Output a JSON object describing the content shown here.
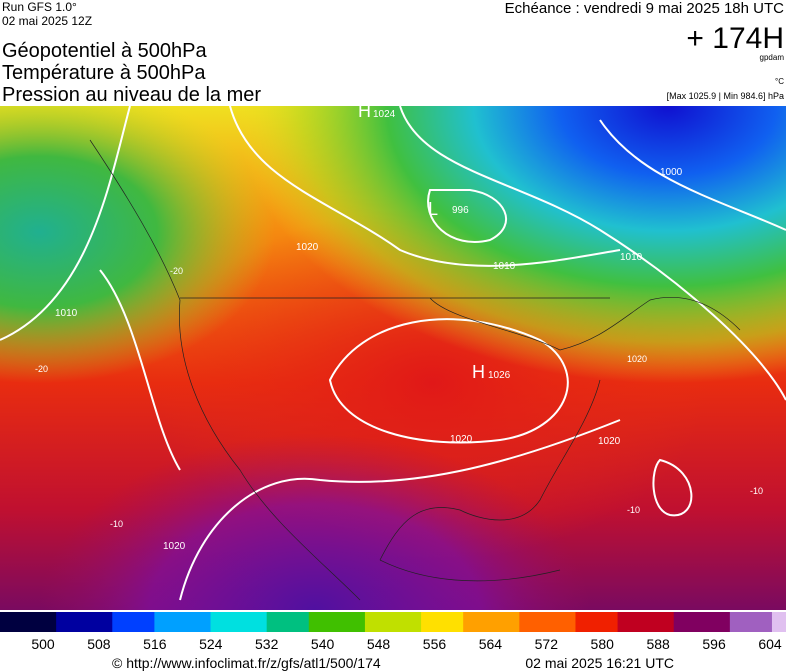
{
  "header": {
    "run": "Run GFS 1.0°",
    "run_date": "02 mai 2025 12Z",
    "titles": [
      "Géopotentiel à 500hPa",
      "Température à 500hPa",
      "Pression au niveau de la mer"
    ],
    "valid_time": "Echéance : vendredi 9 mai 2025 18h UTC",
    "lead": "+ 174H",
    "unit_geo": "gpdam",
    "unit_temp": "°C",
    "pressure_range": "[Max 1025.9 | Min 984.6] hPa"
  },
  "map": {
    "labels": [
      "H",
      "1024",
      "L",
      "996",
      "H",
      "1026",
      "1020",
      "1020",
      "1010",
      "1010",
      "1010",
      "1000",
      "1020",
      "1020",
      "-20",
      "-20",
      "-10",
      "-10",
      "-10",
      "1020"
    ]
  },
  "colorbar": {
    "ticks": [
      500,
      508,
      516,
      524,
      532,
      540,
      548,
      556,
      564,
      572,
      580,
      588,
      596,
      604
    ]
  },
  "footer": {
    "url": "© http://www.infoclimat.fr/z/gfs/atl1/500/174",
    "timestamp": "02 mai 2025 16:21 UTC"
  }
}
